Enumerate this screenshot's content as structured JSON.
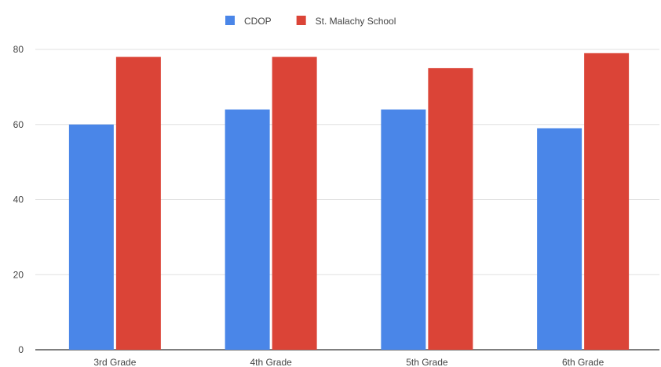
{
  "chart_data": {
    "type": "bar",
    "categories": [
      "3rd Grade",
      "4th Grade",
      "5th Grade",
      "6th Grade"
    ],
    "series": [
      {
        "name": "CDOP",
        "values": [
          60,
          64,
          64,
          59
        ],
        "color": "#4a86e8"
      },
      {
        "name": "St. Malachy School",
        "values": [
          78,
          78,
          75,
          79
        ],
        "color": "#db4437"
      }
    ],
    "ylim": [
      0,
      80
    ],
    "yticks": [
      0,
      20,
      40,
      60,
      80
    ],
    "grid": true,
    "legend_position": "top-center"
  }
}
